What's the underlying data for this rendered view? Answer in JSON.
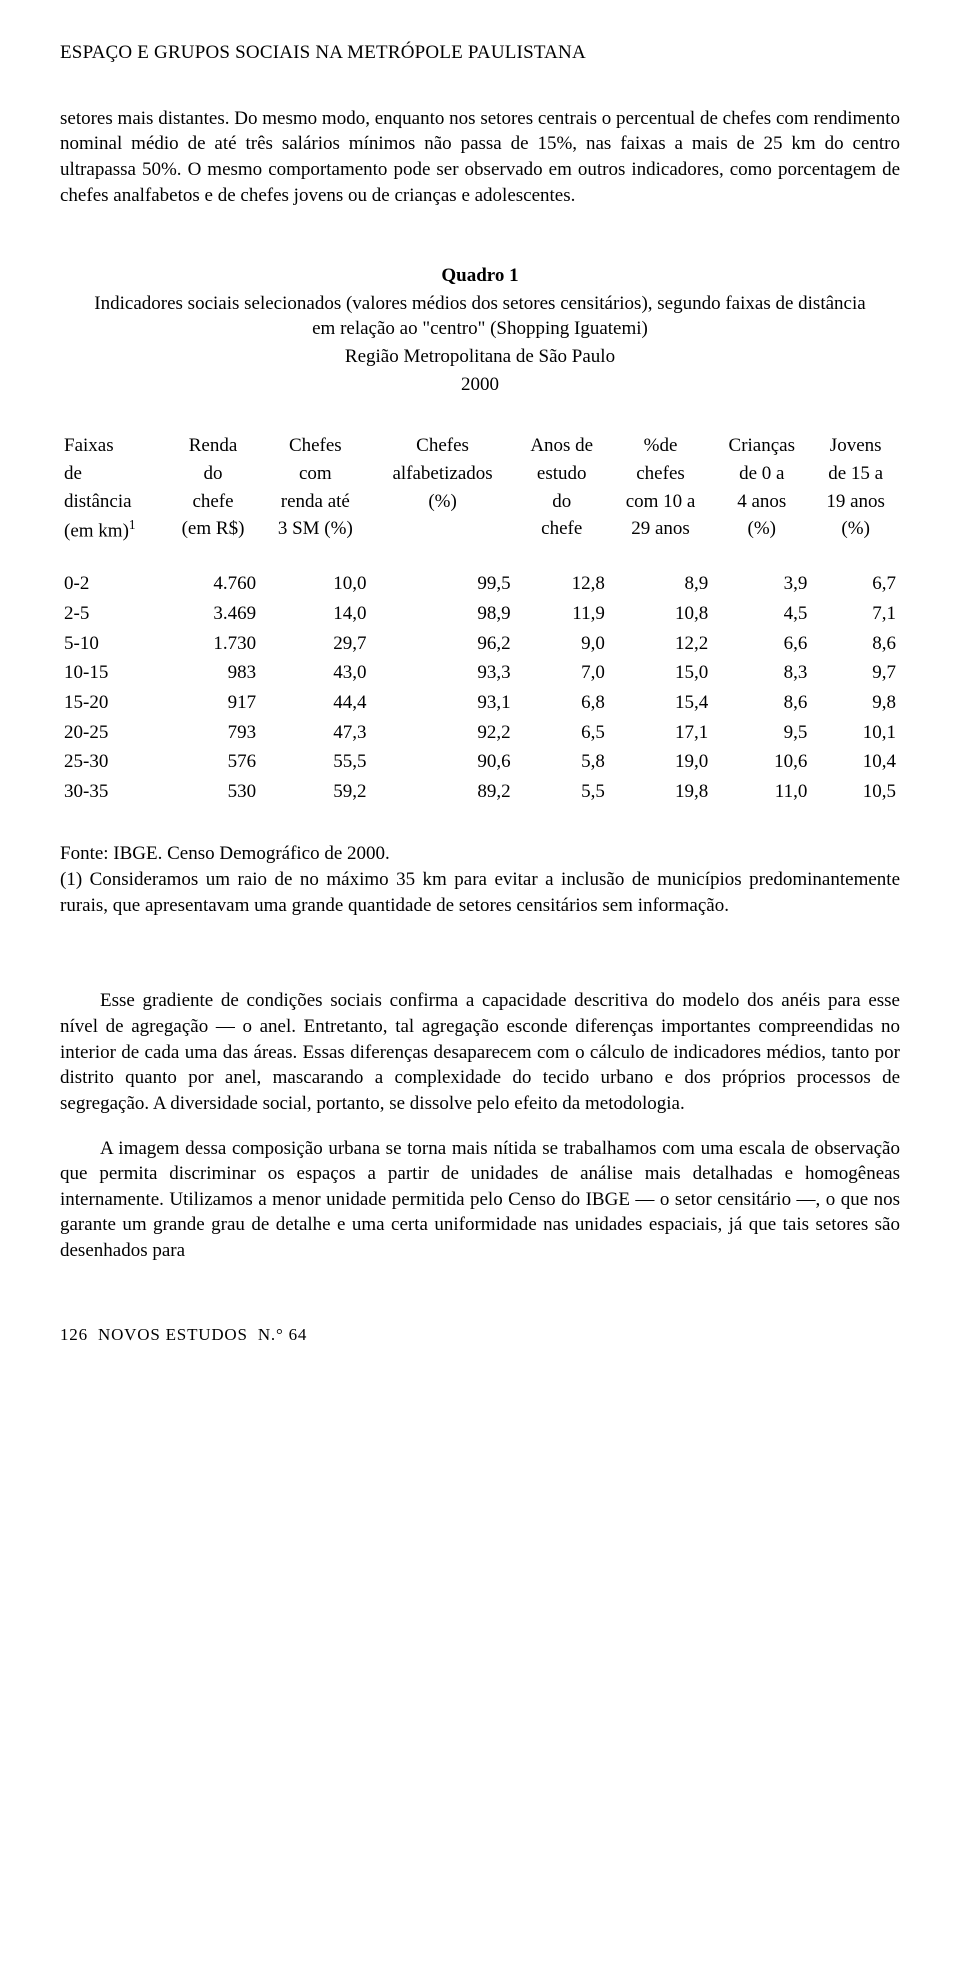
{
  "header": {
    "title": "ESPAÇO E GRUPOS SOCIAIS NA METRÓPOLE PAULISTANA"
  },
  "intro": {
    "p1": "setores mais distantes. Do mesmo modo, enquanto nos setores centrais o percentual de chefes com rendimento nominal médio de até três salários mínimos não passa de 15%, nas faixas a mais de 25 km do centro ultrapassa 50%. O mesmo comportamento pode ser observado em outros indicadores, como porcentagem de chefes analfabetos e de chefes jovens ou de crianças e adolescentes."
  },
  "quadro": {
    "title": "Quadro 1",
    "subtitle1": "Indicadores sociais selecionados (valores médios dos setores censitários), segundo faixas de distância em relação ao \"centro\" (Shopping Iguatemi)",
    "subtitle2": "Região Metropolitana de São Paulo",
    "subtitle3": "2000",
    "columns": [
      {
        "l1": "Faixas",
        "l2": "de",
        "l3": "distância",
        "l4_pre": "(em km)",
        "l4_sup": "1",
        "align": "left"
      },
      {
        "l1": "Renda",
        "l2": "do",
        "l3": "chefe",
        "l4": "(em R$)",
        "align": "right"
      },
      {
        "l1": "Chefes",
        "l2": "com",
        "l3": "renda até",
        "l4": "3 SM (%)",
        "align": "right"
      },
      {
        "l1": "Chefes",
        "l2": "alfabetizados",
        "l3": "(%)",
        "l4": "",
        "align": "right"
      },
      {
        "l1": "Anos de",
        "l2": "estudo",
        "l3": "do",
        "l4": "chefe",
        "align": "right"
      },
      {
        "l1": "%de",
        "l2": "chefes",
        "l3": "com 10 a",
        "l4": "29 anos",
        "align": "right"
      },
      {
        "l1": "Crianças",
        "l2": "de 0 a",
        "l3": "4 anos",
        "l4": "(%)",
        "align": "right"
      },
      {
        "l1": "Jovens",
        "l2": "de 15 a",
        "l3": "19 anos",
        "l4": "(%)",
        "align": "right"
      }
    ],
    "rows": [
      [
        "0-2",
        "4.760",
        "10,0",
        "99,5",
        "12,8",
        "8,9",
        "3,9",
        "6,7"
      ],
      [
        "2-5",
        "3.469",
        "14,0",
        "98,9",
        "11,9",
        "10,8",
        "4,5",
        "7,1"
      ],
      [
        "5-10",
        "1.730",
        "29,7",
        "96,2",
        "9,0",
        "12,2",
        "6,6",
        "8,6"
      ],
      [
        "10-15",
        "983",
        "43,0",
        "93,3",
        "7,0",
        "15,0",
        "8,3",
        "9,7"
      ],
      [
        "15-20",
        "917",
        "44,4",
        "93,1",
        "6,8",
        "15,4",
        "8,6",
        "9,8"
      ],
      [
        "20-25",
        "793",
        "47,3",
        "92,2",
        "6,5",
        "17,1",
        "9,5",
        "10,1"
      ],
      [
        "25-30",
        "576",
        "55,5",
        "90,6",
        "5,8",
        "19,0",
        "10,6",
        "10,4"
      ],
      [
        "30-35",
        "530",
        "59,2",
        "89,2",
        "5,5",
        "19,8",
        "11,0",
        "10,5"
      ]
    ],
    "fonte": "Fonte: IBGE. Censo Demográfico de 2000.",
    "note": "(1) Consideramos um raio de no máximo 35 km para evitar a inclusão de municípios predominantemente rurais, que apresentavam uma grande quantidade de setores censitários sem informação."
  },
  "body": {
    "p1": "Esse gradiente de condições sociais confirma a capacidade descritiva do modelo dos anéis para esse nível de agregação — o anel. Entretanto, tal agregação esconde diferenças importantes compreendidas no interior de cada uma das áreas. Essas diferenças desaparecem com o cálculo de indicadores médios, tanto por distrito quanto por anel, mascarando a complexidade do tecido urbano e dos próprios processos de segregação. A diversidade social, portanto, se dissolve pelo efeito da metodologia.",
    "p2": "A imagem dessa composição urbana se torna mais nítida se trabalhamos com uma escala de observação que permita discriminar os espaços a partir de unidades de análise mais detalhadas e homogêneas internamente. Utilizamos a menor unidade permitida pelo Censo do IBGE — o setor censitário —, o que nos garante um grande grau de detalhe e uma certa uniformidade nas unidades espaciais, já que tais setores são desenhados para"
  },
  "footer": {
    "page": "126",
    "journal": "NOVOS   ESTUDOS",
    "issue": "N.° 64"
  },
  "style": {
    "background_color": "#ffffff",
    "text_color": "#000000",
    "font_family": "Times New Roman",
    "base_fontsize_pt": 14
  }
}
